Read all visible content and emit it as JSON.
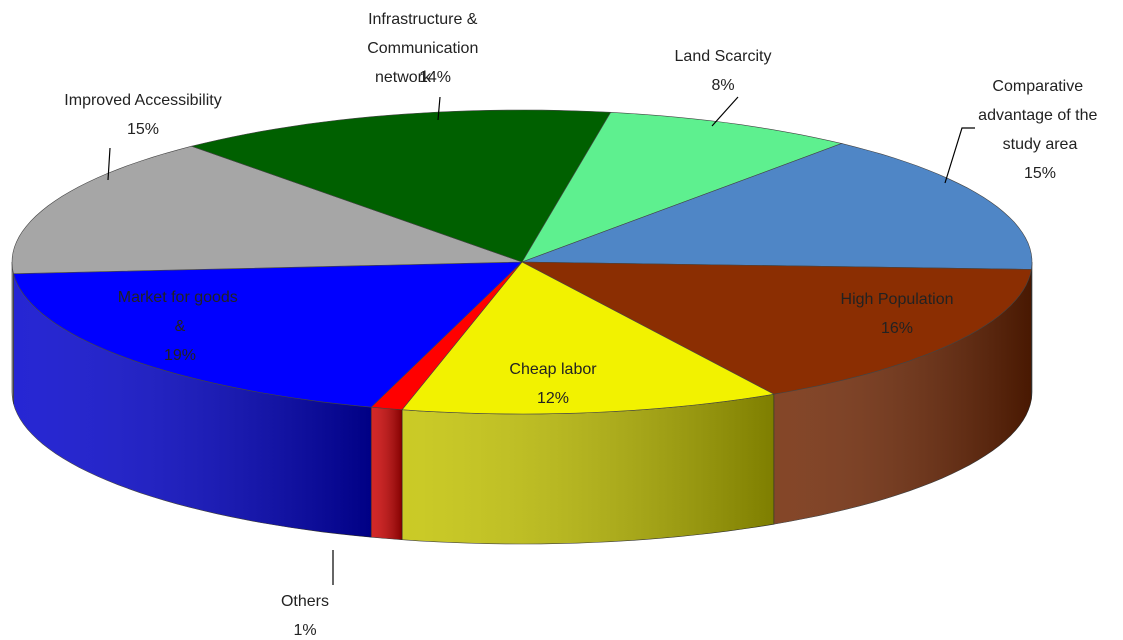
{
  "chart_data": {
    "type": "pie",
    "three_d": true,
    "categories": [
      "Land Scarcity",
      "Comparative advantage of the study area",
      "High Population",
      "Cheap labor",
      "Others",
      "Market for goods & services",
      "Improved Accessibility",
      "Infrastructure & Communication network"
    ],
    "values": [
      8,
      15,
      16,
      12,
      1,
      19,
      15,
      14
    ],
    "value_labels": [
      "8%",
      "15%",
      "16%",
      "12%",
      "1%",
      "19%",
      "15%",
      "14%"
    ],
    "colors": [
      "#5ef08f",
      "#4f86c6",
      "#8b2e02",
      "#f2f200",
      "#ff0000",
      "#0000ff",
      "#a6a6a6",
      "#006000"
    ]
  }
}
